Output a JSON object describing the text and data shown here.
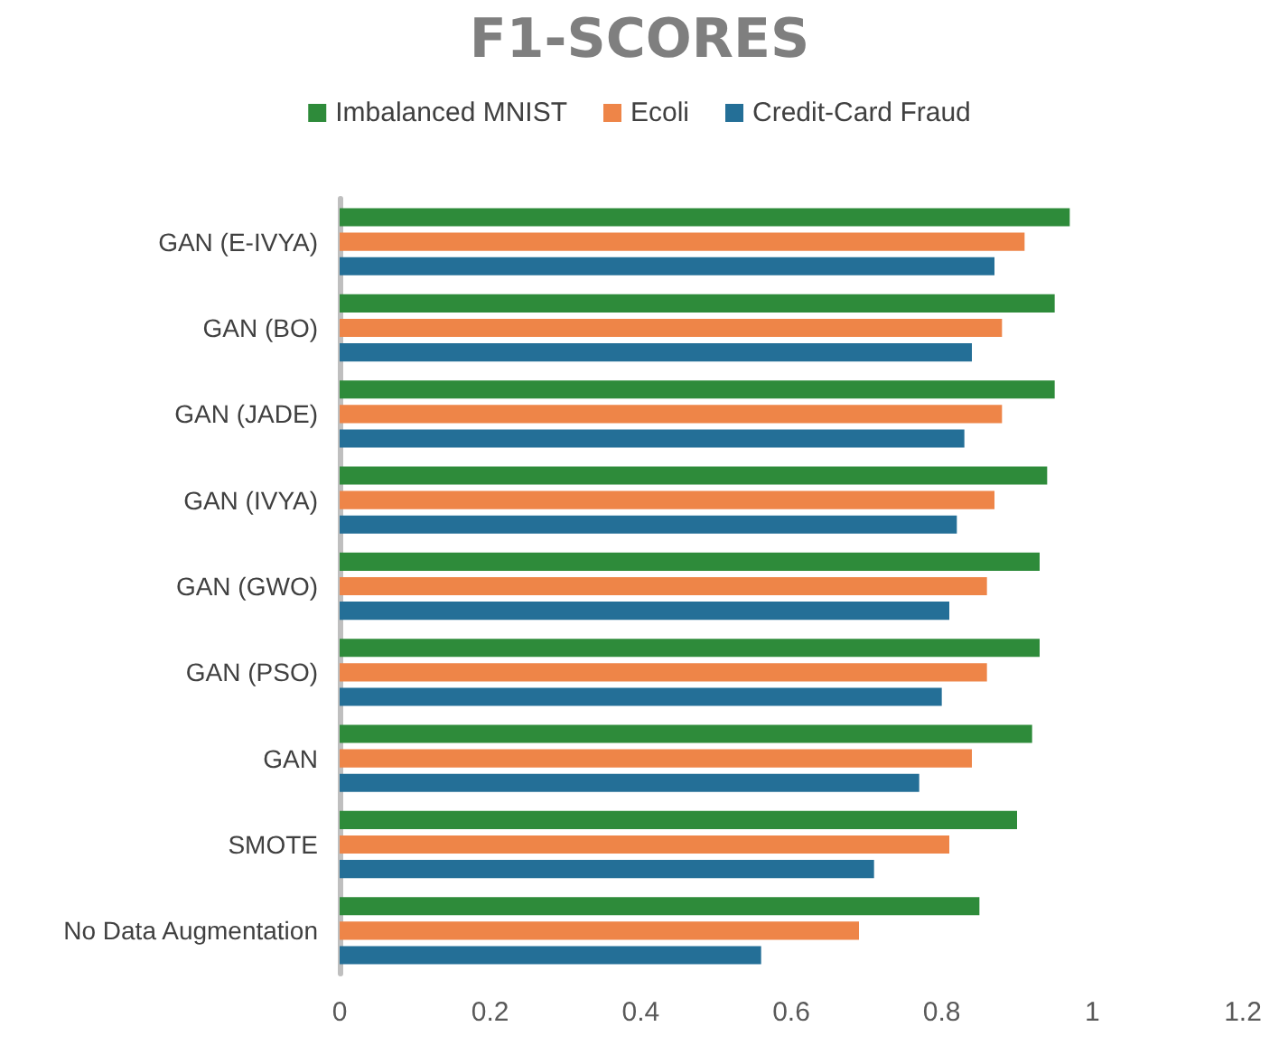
{
  "chart_data": {
    "type": "bar",
    "orientation": "horizontal",
    "title": "F1-SCORES",
    "categories": [
      "GAN (E-IVYA)",
      "GAN (BO)",
      "GAN (JADE)",
      "GAN (IVYA)",
      "GAN (GWO)",
      "GAN (PSO)",
      "GAN",
      "SMOTE",
      "No Data Augmentation"
    ],
    "series": [
      {
        "name": "Imbalanced MNIST",
        "color": "#2e8b3a",
        "values": [
          0.97,
          0.95,
          0.95,
          0.94,
          0.93,
          0.93,
          0.92,
          0.9,
          0.85
        ]
      },
      {
        "name": "Ecoli",
        "color": "#ee8548",
        "values": [
          0.91,
          0.88,
          0.88,
          0.87,
          0.86,
          0.86,
          0.84,
          0.81,
          0.69
        ]
      },
      {
        "name": "Credit-Card Fraud",
        "color": "#246f97",
        "values": [
          0.87,
          0.84,
          0.83,
          0.82,
          0.81,
          0.8,
          0.77,
          0.71,
          0.56
        ]
      }
    ],
    "xlim": [
      0,
      1.2
    ],
    "xticks": [
      0,
      0.2,
      0.4,
      0.6,
      0.8,
      1,
      1.2
    ],
    "grid": false,
    "legend": "top"
  }
}
